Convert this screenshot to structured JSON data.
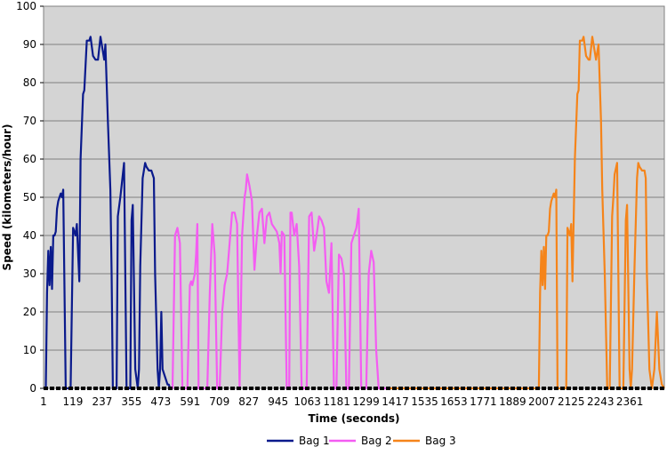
{
  "chart_data": {
    "type": "line",
    "xlabel": "Time (seconds)",
    "ylabel": "Speed (kilometers/hour)",
    "ylim": [
      0,
      100
    ],
    "xlim": [
      1,
      2500
    ],
    "yticks": [
      0,
      10,
      20,
      30,
      40,
      50,
      60,
      70,
      80,
      90,
      100
    ],
    "xticks": [
      1,
      119,
      237,
      355,
      473,
      591,
      709,
      827,
      945,
      1063,
      1181,
      1299,
      1417,
      1535,
      1653,
      1771,
      1889,
      2007,
      2125,
      2243,
      2361
    ],
    "grid": "horizontal",
    "legend": "bottom",
    "background": "#d4d4d4",
    "series": [
      {
        "name": "Bag 1",
        "color": "#0a1a8c",
        "x": [
          1,
          10,
          15,
          20,
          25,
          30,
          35,
          40,
          45,
          50,
          55,
          60,
          65,
          70,
          75,
          80,
          90,
          100,
          110,
          120,
          130,
          135,
          145,
          150,
          160,
          165,
          175,
          185,
          190,
          200,
          210,
          220,
          230,
          240,
          245,
          250,
          260,
          270,
          275,
          280,
          290,
          295,
          300,
          310,
          320,
          325,
          335,
          345,
          350,
          355,
          360,
          370,
          380,
          385,
          390,
          400,
          410,
          415,
          425,
          435,
          445,
          450,
          460,
          465,
          470,
          475,
          480,
          490,
          500,
          505,
          510
        ],
        "y": [
          0,
          0,
          25,
          36,
          27,
          37,
          26,
          40,
          40,
          41,
          47,
          49,
          50,
          51,
          50,
          52,
          0,
          0,
          0,
          42,
          40,
          43,
          28,
          60,
          77,
          78,
          91,
          91,
          92,
          87,
          86,
          86,
          92,
          88,
          86,
          90,
          70,
          52,
          30,
          0,
          0,
          0,
          45,
          50,
          56,
          59,
          0,
          0,
          0,
          44,
          48,
          5,
          0,
          5,
          32,
          55,
          59,
          58,
          57,
          57,
          55,
          30,
          5,
          0,
          5,
          20,
          5,
          3,
          1,
          1,
          0
        ]
      },
      {
        "name": "Bag 2",
        "color": "#f45cf2",
        "x": [
          510,
          520,
          530,
          540,
          550,
          560,
          565,
          570,
          580,
          590,
          595,
          600,
          610,
          615,
          620,
          625,
          630,
          640,
          650,
          660,
          670,
          680,
          690,
          700,
          705,
          710,
          720,
          730,
          740,
          750,
          760,
          770,
          780,
          790,
          800,
          810,
          815,
          820,
          830,
          840,
          850,
          860,
          870,
          880,
          890,
          900,
          910,
          920,
          930,
          940,
          950,
          955,
          960,
          970,
          980,
          990,
          995,
          1000,
          1010,
          1020,
          1030,
          1040,
          1050,
          1060,
          1070,
          1080,
          1090,
          1100,
          1110,
          1120,
          1130,
          1140,
          1150,
          1160,
          1170,
          1180,
          1190,
          1200,
          1210,
          1220,
          1230,
          1240,
          1250,
          1260,
          1270,
          1280,
          1290,
          1300,
          1310,
          1320,
          1330,
          1340,
          1350,
          1360,
          1370,
          1380,
          1385
        ],
        "y": [
          0,
          0,
          40,
          42,
          38,
          0,
          0,
          0,
          0,
          27,
          28,
          27,
          30,
          35,
          43,
          0,
          0,
          0,
          0,
          0,
          25,
          43,
          35,
          0,
          0,
          0,
          20,
          27,
          30,
          38,
          46,
          46,
          43,
          0,
          40,
          50,
          52,
          56,
          53,
          49,
          31,
          40,
          46,
          47,
          38,
          45,
          46,
          43,
          42,
          41,
          38,
          30,
          41,
          40,
          0,
          0,
          46,
          46,
          40,
          43,
          32,
          0,
          0,
          0,
          45,
          46,
          36,
          40,
          45,
          44,
          42,
          28,
          25,
          38,
          0,
          0,
          35,
          34,
          30,
          0,
          0,
          38,
          40,
          42,
          47,
          0,
          0,
          0,
          30,
          36,
          33,
          10,
          0,
          0,
          0,
          0,
          0
        ]
      },
      {
        "name": "Bag 3",
        "color": "#f5841a",
        "x": [
          1385,
          1400,
          1500,
          1600,
          1700,
          1800,
          1900,
          1960,
          1980,
          1995,
          2000,
          2005,
          2010,
          2015,
          2020,
          2025,
          2030,
          2035,
          2040,
          2045,
          2050,
          2055,
          2060,
          2065,
          2070,
          2075,
          2085,
          2095,
          2105,
          2110,
          2120,
          2125,
          2130,
          2140,
          2150,
          2155,
          2160,
          2170,
          2175,
          2185,
          2195,
          2200,
          2210,
          2220,
          2225,
          2235,
          2245,
          2250,
          2260,
          2270,
          2275,
          2280,
          2290,
          2295,
          2300,
          2310,
          2320,
          2325,
          2335,
          2345,
          2350,
          2360,
          2365,
          2370,
          2380,
          2390,
          2395,
          2400,
          2410,
          2420,
          2425,
          2430,
          2440,
          2450,
          2460,
          2470,
          2480,
          2490,
          2500
        ],
        "y": [
          0,
          0,
          0,
          0,
          0,
          0,
          0,
          0,
          0,
          0,
          25,
          36,
          27,
          37,
          26,
          40,
          40,
          41,
          47,
          49,
          50,
          51,
          50,
          52,
          0,
          0,
          0,
          0,
          0,
          42,
          40,
          43,
          28,
          60,
          77,
          78,
          91,
          91,
          92,
          87,
          86,
          86,
          92,
          88,
          86,
          90,
          70,
          52,
          30,
          0,
          0,
          0,
          45,
          50,
          56,
          59,
          0,
          0,
          0,
          44,
          48,
          5,
          0,
          5,
          32,
          55,
          59,
          58,
          57,
          57,
          55,
          30,
          5,
          0,
          5,
          20,
          5,
          1,
          0
        ]
      }
    ]
  }
}
